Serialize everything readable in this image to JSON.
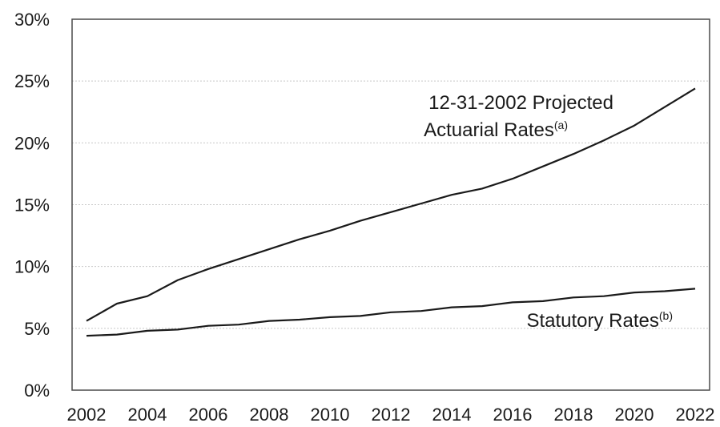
{
  "chart_data": {
    "type": "line",
    "x": [
      2002,
      2003,
      2004,
      2005,
      2006,
      2007,
      2008,
      2009,
      2010,
      2011,
      2012,
      2013,
      2014,
      2015,
      2016,
      2017,
      2018,
      2019,
      2020,
      2021,
      2022
    ],
    "x_ticks": [
      "2002",
      "2004",
      "2006",
      "2008",
      "2010",
      "2012",
      "2014",
      "2016",
      "2018",
      "2020",
      "2022"
    ],
    "y_ticks": [
      "0%",
      "5%",
      "10%",
      "15%",
      "20%",
      "25%",
      "30%"
    ],
    "ylim": [
      0,
      30
    ],
    "xlim": [
      2002,
      2022
    ],
    "grid": true,
    "series": [
      {
        "label_main": "12-31-2002 Projected",
        "label_line2": "Actuarial Rates",
        "label_sup": "(a)",
        "values": [
          5.6,
          7.0,
          7.6,
          8.9,
          9.8,
          10.6,
          11.4,
          12.2,
          12.9,
          13.7,
          14.4,
          15.1,
          15.8,
          16.3,
          17.1,
          18.1,
          19.1,
          20.2,
          21.4,
          22.9,
          24.4
        ]
      },
      {
        "label_main": "Statutory Rates",
        "label_sup": "(b)",
        "values": [
          4.4,
          4.5,
          4.8,
          4.9,
          5.2,
          5.3,
          5.6,
          5.7,
          5.9,
          6.0,
          6.3,
          6.4,
          6.7,
          6.8,
          7.1,
          7.2,
          7.5,
          7.6,
          7.9,
          8.0,
          8.2
        ]
      }
    ]
  }
}
